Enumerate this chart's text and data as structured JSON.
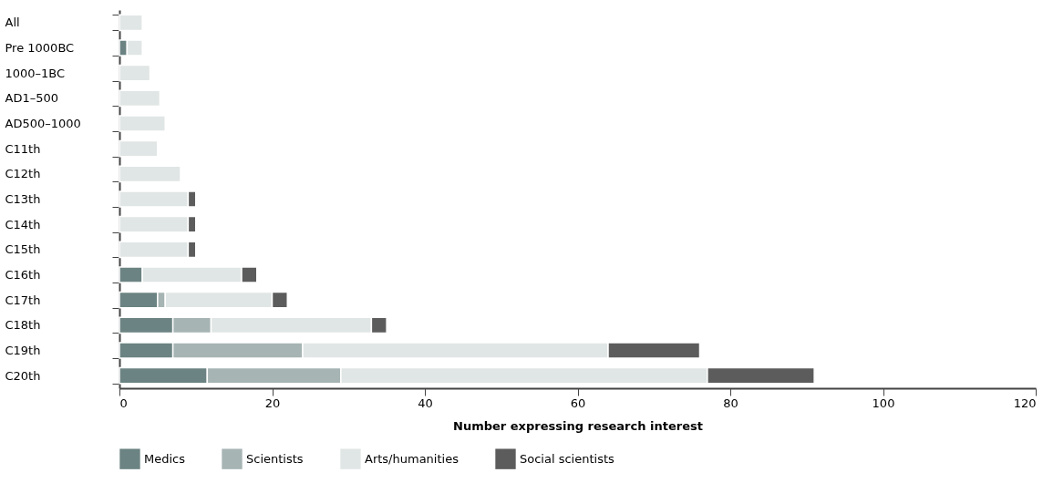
{
  "chart_data": {
    "type": "bar",
    "orientation": "horizontal",
    "stacked": true,
    "categories": [
      "All",
      "Pre 1000BC",
      "1000–1BC",
      "AD1–500",
      "AD500–1000",
      "C11th",
      "C12th",
      "C13th",
      "C14th",
      "C15th",
      "C16th",
      "C17th",
      "C18th",
      "C19th",
      "C20th"
    ],
    "series": [
      {
        "name": "Medics",
        "color": "#6b8382",
        "values": [
          0,
          1,
          0,
          0,
          0,
          0,
          0,
          0,
          0,
          0,
          3,
          5,
          7,
          7,
          11.5
        ]
      },
      {
        "name": "Scientists",
        "color": "#a6b4b3",
        "values": [
          0,
          0,
          0,
          0,
          0,
          0,
          0,
          0,
          0,
          0,
          0,
          1,
          5,
          17,
          17.5
        ]
      },
      {
        "name": "Arts/humanities",
        "color": "#e0e6e5",
        "values": [
          3,
          2,
          4,
          5.3,
          6,
          5,
          8,
          9,
          9,
          9,
          13,
          14,
          21,
          40,
          48
        ]
      },
      {
        "name": "Social scientists",
        "color": "#5c5c5c",
        "values": [
          0,
          0,
          0,
          0,
          0,
          0,
          0,
          1,
          1,
          1,
          2,
          2,
          2,
          12,
          14
        ]
      }
    ],
    "xlabel": "Number expressing research interest",
    "xlim": [
      0,
      120
    ],
    "xticks": [
      0,
      20,
      40,
      60,
      80,
      100,
      120
    ],
    "grid": false,
    "legend": "bottom"
  }
}
